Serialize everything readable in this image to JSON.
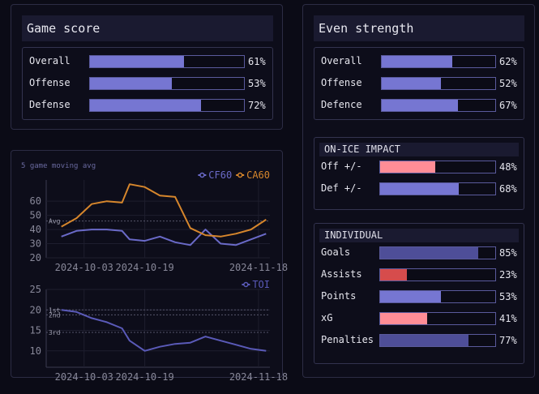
{
  "game_score": {
    "title": "Game score",
    "rows": [
      {
        "label": "Overall",
        "value": 61,
        "display": "61%"
      },
      {
        "label": "Offense",
        "value": 53,
        "display": "53%"
      },
      {
        "label": "Defense",
        "value": 72,
        "display": "72%"
      }
    ]
  },
  "even_strength": {
    "title": "Even strength",
    "rows": [
      {
        "label": "Overall",
        "value": 62,
        "display": "62%"
      },
      {
        "label": "Offense",
        "value": 52,
        "display": "52%"
      },
      {
        "label": "Defence",
        "value": 67,
        "display": "67%"
      }
    ]
  },
  "on_ice": {
    "title": "ON-ICE IMPACT",
    "rows": [
      {
        "label": "Off +/-",
        "value": 48,
        "display": "48%",
        "color": "#ff8d96"
      },
      {
        "label": "Def +/-",
        "value": 68,
        "display": "68%",
        "color": "#7676d2"
      }
    ]
  },
  "individual": {
    "title": "INDIVIDUAL",
    "rows": [
      {
        "label": "Goals",
        "value": 85,
        "display": "85%",
        "color": "#4e4e98"
      },
      {
        "label": "Assists",
        "value": 23,
        "display": "23%",
        "color": "#d64c4c"
      },
      {
        "label": "Points",
        "value": 53,
        "display": "53%",
        "color": "#7676d2"
      },
      {
        "label": "xG",
        "value": 41,
        "display": "41%",
        "color": "#ff8d96"
      },
      {
        "label": "Penalties",
        "value": 77,
        "display": "77%",
        "color": "#4e4e98"
      }
    ]
  },
  "colors": {
    "bar": "#7676d2",
    "cf": "#6a6ac8",
    "ca": "#d6862c",
    "toi": "#5a5ab8"
  },
  "chart_data": [
    {
      "type": "line",
      "title": "5 game moving avg",
      "x": [
        "2024-09-27",
        "2024-10-01",
        "2024-10-05",
        "2024-10-09",
        "2024-10-13",
        "2024-10-15",
        "2024-10-19",
        "2024-10-23",
        "2024-10-27",
        "2024-10-31",
        "2024-11-04",
        "2024-11-08",
        "2024-11-12",
        "2024-11-16",
        "2024-11-20"
      ],
      "series": [
        {
          "name": "CF60",
          "values": [
            35,
            39,
            40,
            40,
            39,
            33,
            32,
            35,
            31,
            29,
            40,
            30,
            29,
            33,
            37
          ]
        },
        {
          "name": "CA60",
          "values": [
            42,
            48,
            58,
            60,
            59,
            72,
            70,
            64,
            63,
            41,
            36,
            35,
            37,
            40,
            47
          ]
        }
      ],
      "annotations": [
        {
          "label": "Avg",
          "y": 46
        }
      ],
      "yticks": [
        20,
        30,
        40,
        50,
        60
      ],
      "ylim": [
        20,
        75
      ],
      "xticks": [
        "2024-10-03",
        "2024-10-19",
        "2024-11-18"
      ]
    },
    {
      "type": "line",
      "x": [
        "2024-09-27",
        "2024-10-01",
        "2024-10-05",
        "2024-10-09",
        "2024-10-13",
        "2024-10-15",
        "2024-10-19",
        "2024-10-23",
        "2024-10-27",
        "2024-10-31",
        "2024-11-04",
        "2024-11-08",
        "2024-11-12",
        "2024-11-16",
        "2024-11-20"
      ],
      "series": [
        {
          "name": "TOI",
          "values": [
            20,
            19.5,
            18,
            17,
            15.5,
            12.5,
            10,
            11,
            11.7,
            12,
            13.5,
            12.5,
            11.5,
            10.5,
            10
          ]
        }
      ],
      "annotations": [
        {
          "label": "1st",
          "y": 20
        },
        {
          "label": "2nd",
          "y": 18.8
        },
        {
          "label": "3rd",
          "y": 14.5
        }
      ],
      "yticks": [
        10,
        15,
        20,
        25
      ],
      "ylim": [
        6,
        25
      ],
      "xticks": [
        "2024-10-03",
        "2024-10-19",
        "2024-11-18"
      ]
    }
  ]
}
